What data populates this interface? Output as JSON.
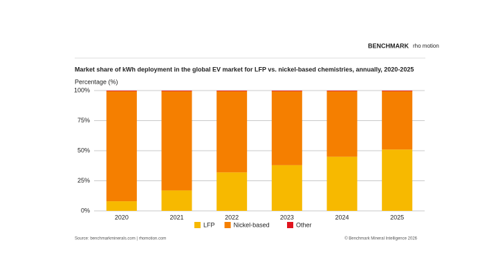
{
  "chart_data": {
    "type": "stacked-bar",
    "logos": [
      "BENCHMARK",
      "rho motion"
    ],
    "title": "Market share of kWh deployment in the global EV market for LFP vs. nickel-based chemistries, annually, 2020-2025",
    "y_label": "Percentage (%)",
    "categories": [
      "2020",
      "2021",
      "2022",
      "2023",
      "2024",
      "2025"
    ],
    "series": [
      {
        "name": "LFP",
        "color": "#f7b900",
        "values": [
          8,
          17,
          32,
          38,
          45,
          51
        ]
      },
      {
        "name": "Nickel-based",
        "color": "#f57f00",
        "values": [
          91.5,
          82.5,
          67.5,
          61.5,
          54.5,
          48.5
        ]
      },
      {
        "name": "Other",
        "color": "#e0141e",
        "values": [
          0.5,
          0.5,
          0.5,
          0.5,
          0.5,
          0.5
        ]
      }
    ],
    "ylim": [
      0,
      100
    ],
    "yticks": [
      {
        "value": 0,
        "label": "0%"
      },
      {
        "value": 25,
        "label": "25%"
      },
      {
        "value": 50,
        "label": "50%"
      },
      {
        "value": 75,
        "label": "75%"
      },
      {
        "value": 100,
        "label": "100%"
      }
    ],
    "grid": true,
    "legend": "bottom",
    "source": "Source: benchmarkminerals.com  |  rhomotion.com",
    "copyright": "© Benchmark Mineral Intelligence 2026"
  }
}
